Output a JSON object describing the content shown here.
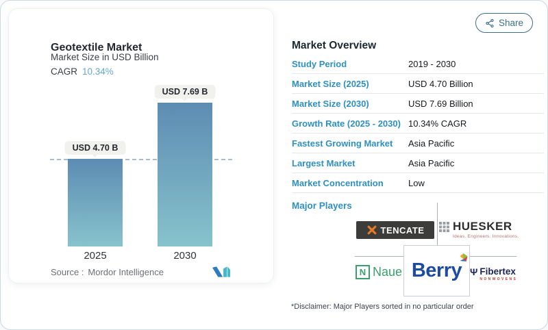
{
  "share": {
    "label": "Share"
  },
  "chart_panel": {
    "title": "Geotextile Market",
    "subtitle": "Market Size in USD Billion",
    "cagr_label": "CAGR",
    "cagr_value": "10.34%",
    "source_label": "Source :",
    "source_value": "Mordor Intelligence"
  },
  "chart_data": {
    "type": "bar",
    "title": "Geotextile Market",
    "subtitle": "Market Size in USD Billion",
    "unit": "USD Billion",
    "categories": [
      "2025",
      "2030"
    ],
    "values": [
      4.7,
      7.69
    ],
    "bar_labels": [
      "USD 4.70 B",
      "USD 7.69 B"
    ],
    "cagr": "10.34%",
    "reference_dashed_line_at": 4.7,
    "ylim": [
      0,
      8
    ],
    "grid": false,
    "legend": false,
    "bar_gradient": [
      "#5d8cb3",
      "#87c3cc"
    ]
  },
  "overview": {
    "title": "Market Overview",
    "rows": [
      {
        "label": "Study Period",
        "value": "2019 - 2030"
      },
      {
        "label": "Market Size (2025)",
        "value": "USD 4.70 Billion"
      },
      {
        "label": "Market Size (2030)",
        "value": "USD 7.69 Billion"
      },
      {
        "label": "Growth Rate (2025 - 2030)",
        "value": "10.34% CAGR"
      },
      {
        "label": "Fastest Growing Market",
        "value": "Asia Pacific"
      },
      {
        "label": "Largest Market",
        "value": "Asia Pacific"
      },
      {
        "label": "Market Concentration",
        "value": "Low"
      }
    ],
    "major_players_label": "Major Players",
    "players": {
      "tencate": {
        "name": "TenCate",
        "display": "TENCATE"
      },
      "huesker": {
        "name": "HUESKER",
        "tagline": "Ideas. Engineers. Innovations."
      },
      "naue": {
        "name": "Naue",
        "icon_letter": "N"
      },
      "berry": {
        "name": "Berry"
      },
      "fibertex": {
        "name": "Fibertex",
        "sub": "NONWOVENS"
      }
    },
    "disclaimer": "*Disclaimer: Major Players sorted in no particular order"
  },
  "colors": {
    "accent_blue": "#2e90c1",
    "cagr_blue": "#64a7cd",
    "bar_top": "#5d8cb3",
    "bar_bottom": "#87c3cc",
    "dashed_line": "#a9bdc7",
    "share_teal": "#3c6f85",
    "berry_blue": "#1c4ba0",
    "naue_green": "#3aa06b",
    "fibertex_navy": "#19235a",
    "tencate_orange": "#e87a24"
  },
  "icons": {
    "share": "share-nodes-icon",
    "mordor_logo": "mordor-intelligence-logo",
    "tencate": "crossed-axes-icon",
    "huesker": "hash-grid-icon",
    "berry": "pinwheel-icon"
  }
}
